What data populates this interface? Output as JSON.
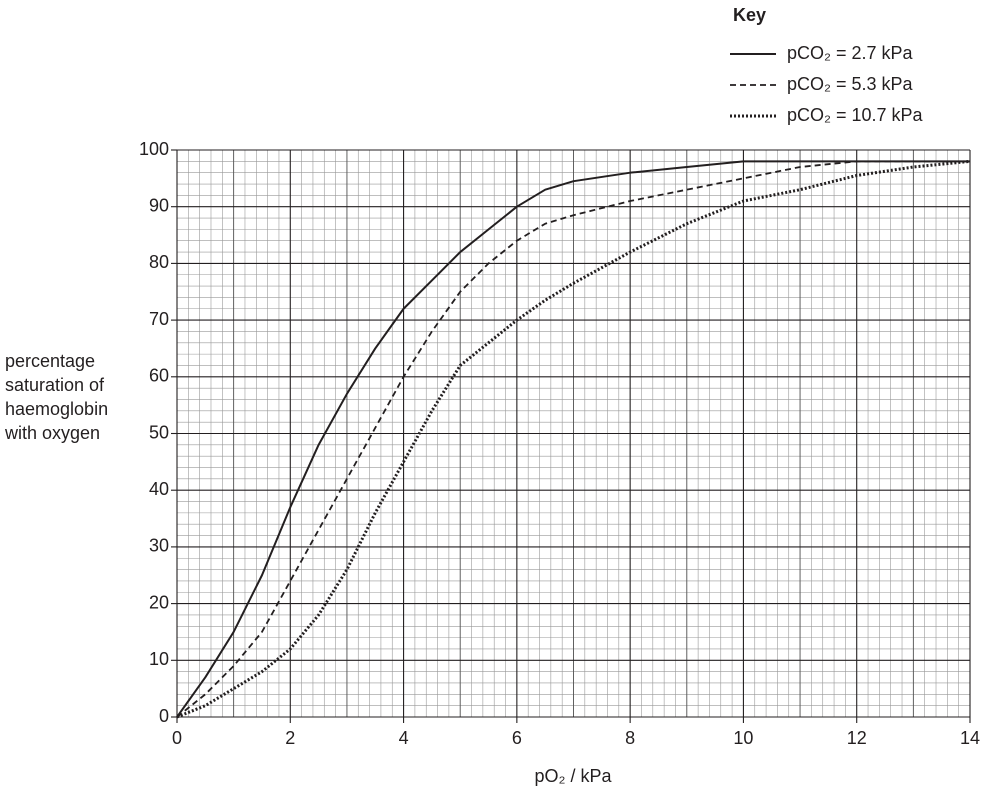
{
  "chart_data": {
    "type": "line",
    "legend_title": "Key",
    "xlabel": "pO₂ / kPa",
    "ylabel": [
      "percentage",
      "saturation of",
      "haemoglobin",
      "with oxygen"
    ],
    "x": [
      0,
      0.5,
      1,
      1.5,
      2,
      2.5,
      3,
      3.5,
      4,
      4.5,
      5,
      5.5,
      6,
      6.5,
      7,
      8,
      9,
      10,
      11,
      12,
      13,
      14
    ],
    "series": [
      {
        "name": "pCO₂ = 2.7 kPa",
        "color": "#231f20",
        "dash": "solid",
        "values": [
          0,
          7,
          15,
          25,
          37,
          48,
          57,
          65,
          72,
          77,
          82,
          86,
          90,
          93,
          94.5,
          96,
          97,
          98,
          98,
          98,
          98,
          98
        ]
      },
      {
        "name": "pCO₂ = 5.3 kPa",
        "color": "#231f20",
        "dash": "dashed",
        "values": [
          0,
          4,
          9,
          15,
          24,
          33,
          42,
          51,
          60,
          68,
          75,
          80,
          84,
          87,
          88.5,
          91,
          93,
          95,
          97,
          98,
          98,
          98
        ]
      },
      {
        "name": "pCO₂ = 10.7 kPa",
        "color": "#231f20",
        "dash": "dotted",
        "values": [
          0,
          2,
          5,
          8,
          12,
          18,
          26,
          36,
          45,
          54,
          62,
          66,
          70,
          73.5,
          76.5,
          82,
          87,
          91,
          93,
          95.5,
          97,
          98
        ]
      }
    ],
    "xlim": [
      0,
      14
    ],
    "xticks": [
      0,
      2,
      4,
      6,
      8,
      10,
      12,
      14
    ],
    "ylim": [
      0,
      100
    ],
    "yticks": [
      0,
      10,
      20,
      30,
      40,
      50,
      60,
      70,
      80,
      90,
      100
    ],
    "grid": true,
    "legend": "upper right"
  }
}
